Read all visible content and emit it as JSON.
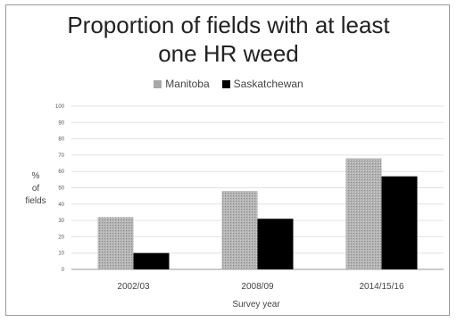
{
  "chart_data": {
    "type": "bar",
    "title_lines": [
      "Proportion of fields with at least",
      "one HR weed"
    ],
    "xlabel": "Survey year",
    "ylabel_lines": [
      "%",
      "of",
      "fields"
    ],
    "categories": [
      "2002/03",
      "2008/09",
      "2014/15/16"
    ],
    "series": [
      {
        "name": "Manitoba",
        "values": [
          32,
          48,
          68
        ],
        "color": "#a8a8a8"
      },
      {
        "name": "Saskatchewan",
        "values": [
          10,
          31,
          57
        ],
        "color": "#000000"
      }
    ],
    "ylim": [
      0,
      100
    ],
    "yticks": [
      "0",
      "10",
      "20",
      "30",
      "40",
      "50",
      "60",
      "70",
      "80",
      "90",
      "100"
    ],
    "grid": true,
    "legend_position": "top-center"
  }
}
